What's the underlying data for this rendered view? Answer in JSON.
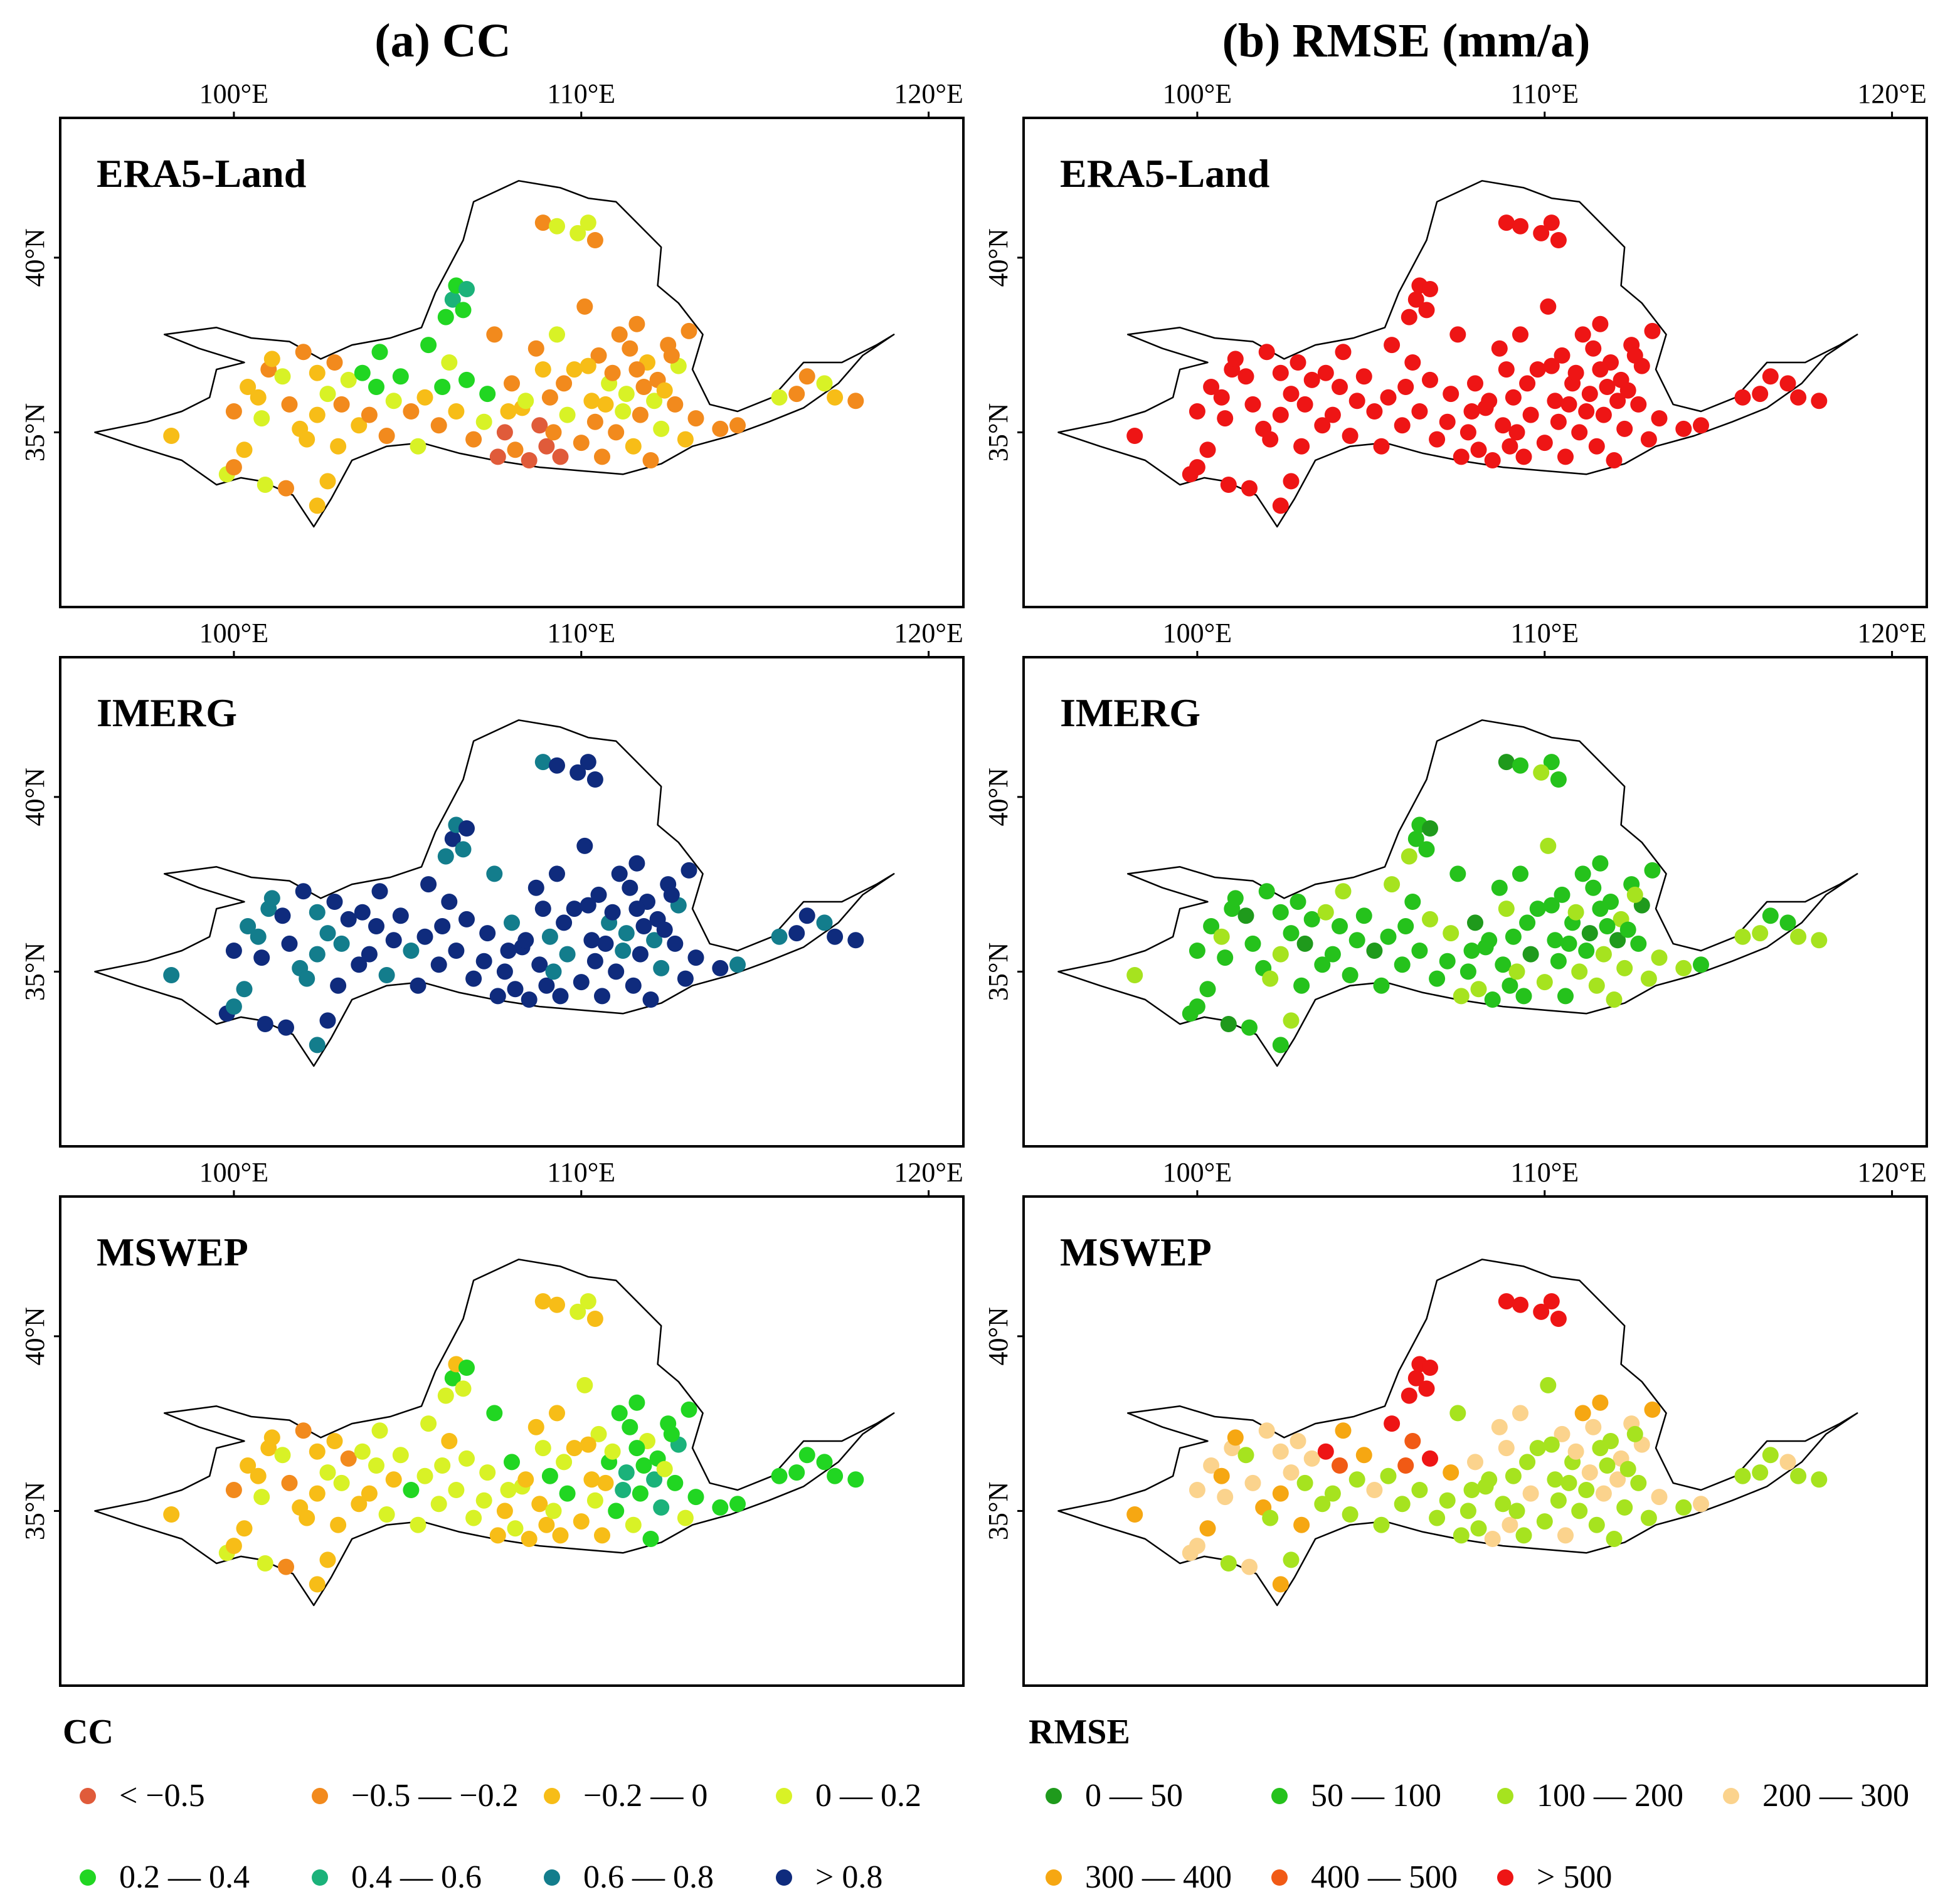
{
  "chart_data": {
    "type": "scatter",
    "description_note": "Station maps over the Yellow River basin; each panel shows the same stations colored by class",
    "columns": [
      {
        "id": "cc",
        "title": "(a) CC",
        "legend_title": "CC"
      },
      {
        "id": "rmse",
        "title": "(b) RMSE (mm/a)",
        "legend_title": "RMSE"
      }
    ],
    "rows": [
      "ERA5-Land",
      "IMERG",
      "MSWEP"
    ],
    "x_axis": {
      "range": [
        95,
        121
      ],
      "ticks": [
        100,
        110,
        120
      ],
      "tick_labels": [
        "100°E",
        "110°E",
        "120°E"
      ]
    },
    "y_axis": {
      "range": [
        30,
        44
      ],
      "ticks": [
        35,
        40
      ],
      "tick_labels": [
        "35°N",
        "40°N"
      ]
    },
    "cc_classes": [
      {
        "label": "< −0.5",
        "color": "#e05b3a"
      },
      {
        "label": "−0.5 — −0.2",
        "color": "#f28a1d"
      },
      {
        "label": "−0.2 — 0",
        "color": "#f7bd17"
      },
      {
        "label": "0 — 0.2",
        "color": "#d8f226"
      },
      {
        "label": "0.2 — 0.4",
        "color": "#21d622"
      },
      {
        "label": "0.4 — 0.6",
        "color": "#1bb27a"
      },
      {
        "label": "0.6 — 0.8",
        "color": "#137d8c"
      },
      {
        "label": "> 0.8",
        "color": "#0f2b7d"
      }
    ],
    "rmse_classes": [
      {
        "label": "0 — 50",
        "color": "#1f9a1c"
      },
      {
        "label": "50 — 100",
        "color": "#25c21c"
      },
      {
        "label": "100 — 200",
        "color": "#a6e31f"
      },
      {
        "label": "200 — 300",
        "color": "#fbd38d"
      },
      {
        "label": "300 — 400",
        "color": "#f6a712"
      },
      {
        "label": "400 — 500",
        "color": "#f15a15"
      },
      {
        "label": "> 500",
        "color": "#ee1515"
      }
    ],
    "stations": [
      [
        98.2,
        34.9
      ],
      [
        99.8,
        33.8
      ],
      [
        100.0,
        34.0
      ],
      [
        100.3,
        34.5
      ],
      [
        100.9,
        33.5
      ],
      [
        101.5,
        33.4
      ],
      [
        102.4,
        32.9
      ],
      [
        102.7,
        33.6
      ],
      [
        100.0,
        35.6
      ],
      [
        100.4,
        36.3
      ],
      [
        100.7,
        36.0
      ],
      [
        100.8,
        35.4
      ],
      [
        101.0,
        36.8
      ],
      [
        101.1,
        37.1
      ],
      [
        101.4,
        36.6
      ],
      [
        101.6,
        35.8
      ],
      [
        101.9,
        35.1
      ],
      [
        102.1,
        34.8
      ],
      [
        102.0,
        37.3
      ],
      [
        102.4,
        36.7
      ],
      [
        102.4,
        35.5
      ],
      [
        102.7,
        36.1
      ],
      [
        102.9,
        37.0
      ],
      [
        103.0,
        34.6
      ],
      [
        103.1,
        35.8
      ],
      [
        103.3,
        36.5
      ],
      [
        103.6,
        35.2
      ],
      [
        103.7,
        36.7
      ],
      [
        103.9,
        35.5
      ],
      [
        104.1,
        36.3
      ],
      [
        104.2,
        37.3
      ],
      [
        104.4,
        34.9
      ],
      [
        104.6,
        35.9
      ],
      [
        104.8,
        36.6
      ],
      [
        105.1,
        35.6
      ],
      [
        105.3,
        34.6
      ],
      [
        105.5,
        36.0
      ],
      [
        105.6,
        37.5
      ],
      [
        105.9,
        35.2
      ],
      [
        106.0,
        36.3
      ],
      [
        106.1,
        38.3
      ],
      [
        106.3,
        38.8
      ],
      [
        106.4,
        39.2
      ],
      [
        106.6,
        38.5
      ],
      [
        106.7,
        39.1
      ],
      [
        106.2,
        37.0
      ],
      [
        106.4,
        35.6
      ],
      [
        106.7,
        36.5
      ],
      [
        106.9,
        34.8
      ],
      [
        107.2,
        35.3
      ],
      [
        107.3,
        36.1
      ],
      [
        107.5,
        37.8
      ],
      [
        107.6,
        34.3
      ],
      [
        107.8,
        35.0
      ],
      [
        108.0,
        36.4
      ],
      [
        108.1,
        34.5
      ],
      [
        108.3,
        35.7
      ],
      [
        108.5,
        34.2
      ],
      [
        108.7,
        37.4
      ],
      [
        108.8,
        35.2
      ],
      [
        109.0,
        34.6
      ],
      [
        109.1,
        36.0
      ],
      [
        109.3,
        37.8
      ],
      [
        109.4,
        34.3
      ],
      [
        109.6,
        35.5
      ],
      [
        109.8,
        36.8
      ],
      [
        110.0,
        34.7
      ],
      [
        110.1,
        38.6
      ],
      [
        110.3,
        35.9
      ],
      [
        110.5,
        37.2
      ],
      [
        110.6,
        34.3
      ],
      [
        110.8,
        36.4
      ],
      [
        111.0,
        35.0
      ],
      [
        111.1,
        37.8
      ],
      [
        111.3,
        36.1
      ],
      [
        111.5,
        34.6
      ],
      [
        111.6,
        38.1
      ],
      [
        111.7,
        35.5
      ],
      [
        111.9,
        37.0
      ],
      [
        112.0,
        34.2
      ],
      [
        112.2,
        36.5
      ],
      [
        112.3,
        35.1
      ],
      [
        112.5,
        37.5
      ],
      [
        112.7,
        35.8
      ],
      [
        112.8,
        36.9
      ],
      [
        113.0,
        34.8
      ],
      [
        113.1,
        37.9
      ],
      [
        113.3,
        35.4
      ],
      [
        110.2,
        36.9
      ],
      [
        110.4,
        35.3
      ],
      [
        110.9,
        36.7
      ],
      [
        111.2,
        35.6
      ],
      [
        111.4,
        37.4
      ],
      [
        111.8,
        36.3
      ],
      [
        112.1,
        35.9
      ],
      [
        112.4,
        36.2
      ],
      [
        109.5,
        36.4
      ],
      [
        108.9,
        36.8
      ],
      [
        110.7,
        35.8
      ],
      [
        111.6,
        36.8
      ],
      [
        112.6,
        37.2
      ],
      [
        109.2,
        35.0
      ],
      [
        108.4,
        35.9
      ],
      [
        107.9,
        35.6
      ],
      [
        108.9,
        41.0
      ],
      [
        109.3,
        40.9
      ],
      [
        110.2,
        41.0
      ],
      [
        109.9,
        40.7
      ],
      [
        110.4,
        40.5
      ],
      [
        114.0,
        35.1
      ],
      [
        114.5,
        35.2
      ],
      [
        115.7,
        36.0
      ],
      [
        116.2,
        36.1
      ],
      [
        116.5,
        36.6
      ],
      [
        117.0,
        36.4
      ],
      [
        117.3,
        36.0
      ],
      [
        117.9,
        35.9
      ]
    ],
    "panels": {
      "cc": {
        "ERA5-Land": {
          "class_by_region": {
            "southwest": "−0.2 — 0",
            "northwest": "0.2 — 0.4",
            "east": "−0.5 — −0.2",
            "south_core": "< −0.5",
            "north": "0 — 0.2"
          }
        },
        "IMERG": {
          "class_by_region": {
            "most": "> 0.8",
            "edges": "0.6 — 0.8"
          }
        },
        "MSWEP": {
          "class_by_region": {
            "southwest": "−0.2 — 0",
            "central": "0 — 0.2",
            "east": "0.2 — 0.4",
            "north": "0 — 0.2"
          }
        }
      },
      "rmse": {
        "ERA5-Land": {
          "class_by_region": {
            "all": "> 500"
          }
        },
        "IMERG": {
          "class_by_region": {
            "most": "50 — 100",
            "south": "100 — 200"
          }
        },
        "MSWEP": {
          "class_by_region": {
            "southwest": "200 — 300",
            "central": "100 — 200",
            "north": "> 500",
            "northwest": "400 — 500"
          }
        }
      }
    }
  },
  "panel_labels": [
    "ERA5-Land",
    "IMERG",
    "MSWEP"
  ]
}
